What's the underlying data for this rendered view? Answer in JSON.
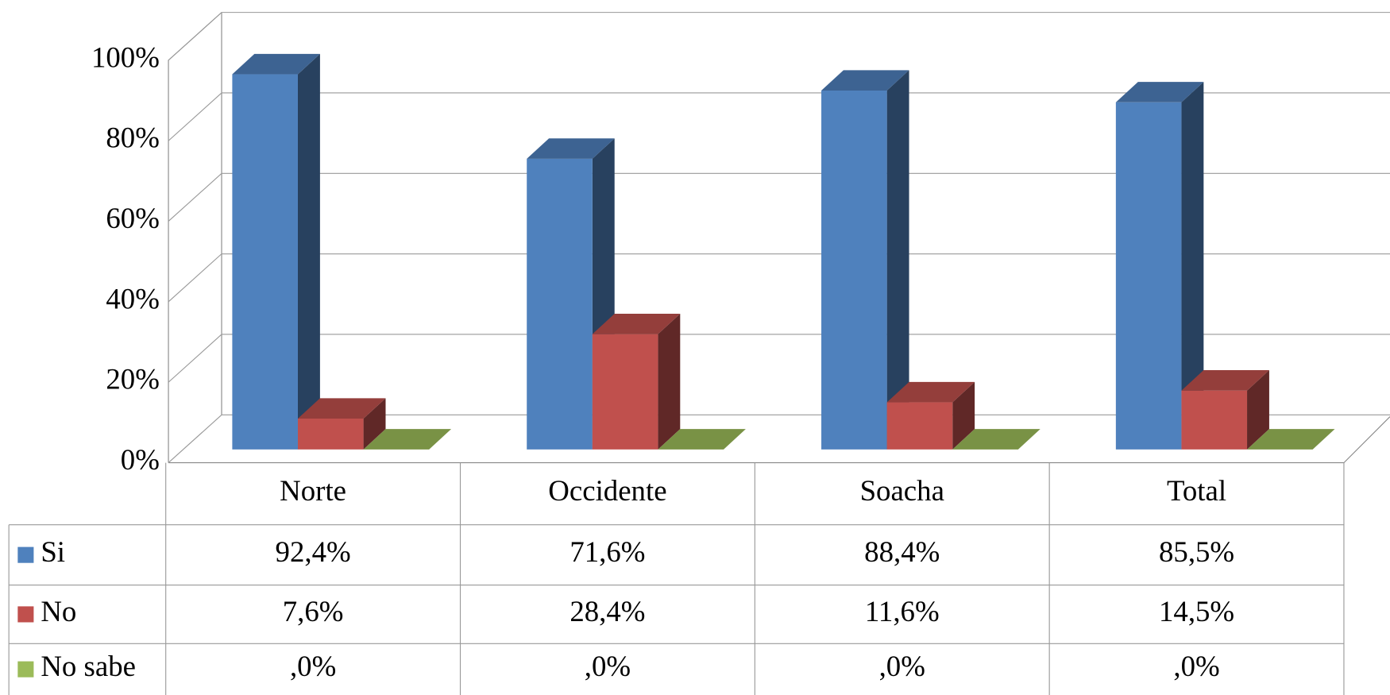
{
  "chart_data": {
    "type": "bar3d",
    "categories": [
      "Norte",
      "Occidente",
      "Soacha",
      "Total"
    ],
    "series": [
      {
        "name": "Si",
        "color": "#4f81bd",
        "values": [
          92.4,
          71.6,
          88.4,
          85.5
        ],
        "value_labels": [
          "92,4%",
          "71,6%",
          "88,4%",
          "85,5%"
        ]
      },
      {
        "name": "No",
        "color": "#c0504d",
        "values": [
          7.6,
          28.4,
          11.6,
          14.5
        ],
        "value_labels": [
          "7,6%",
          "28,4%",
          "11,6%",
          "14,5%"
        ]
      },
      {
        "name": "No sabe",
        "color": "#9bbb59",
        "values": [
          0,
          0,
          0,
          0
        ],
        "value_labels": [
          ",0%",
          ",0%",
          ",0%",
          ",0%"
        ]
      }
    ],
    "ylim": [
      0,
      100
    ],
    "yticks": [
      {
        "value": 0,
        "label": "0%"
      },
      {
        "value": 20,
        "label": "20%"
      },
      {
        "value": 40,
        "label": "40%"
      },
      {
        "value": 60,
        "label": "60%"
      },
      {
        "value": 80,
        "label": "80%"
      },
      {
        "value": 100,
        "label": "100%"
      }
    ],
    "grid": true,
    "data_table": true
  }
}
